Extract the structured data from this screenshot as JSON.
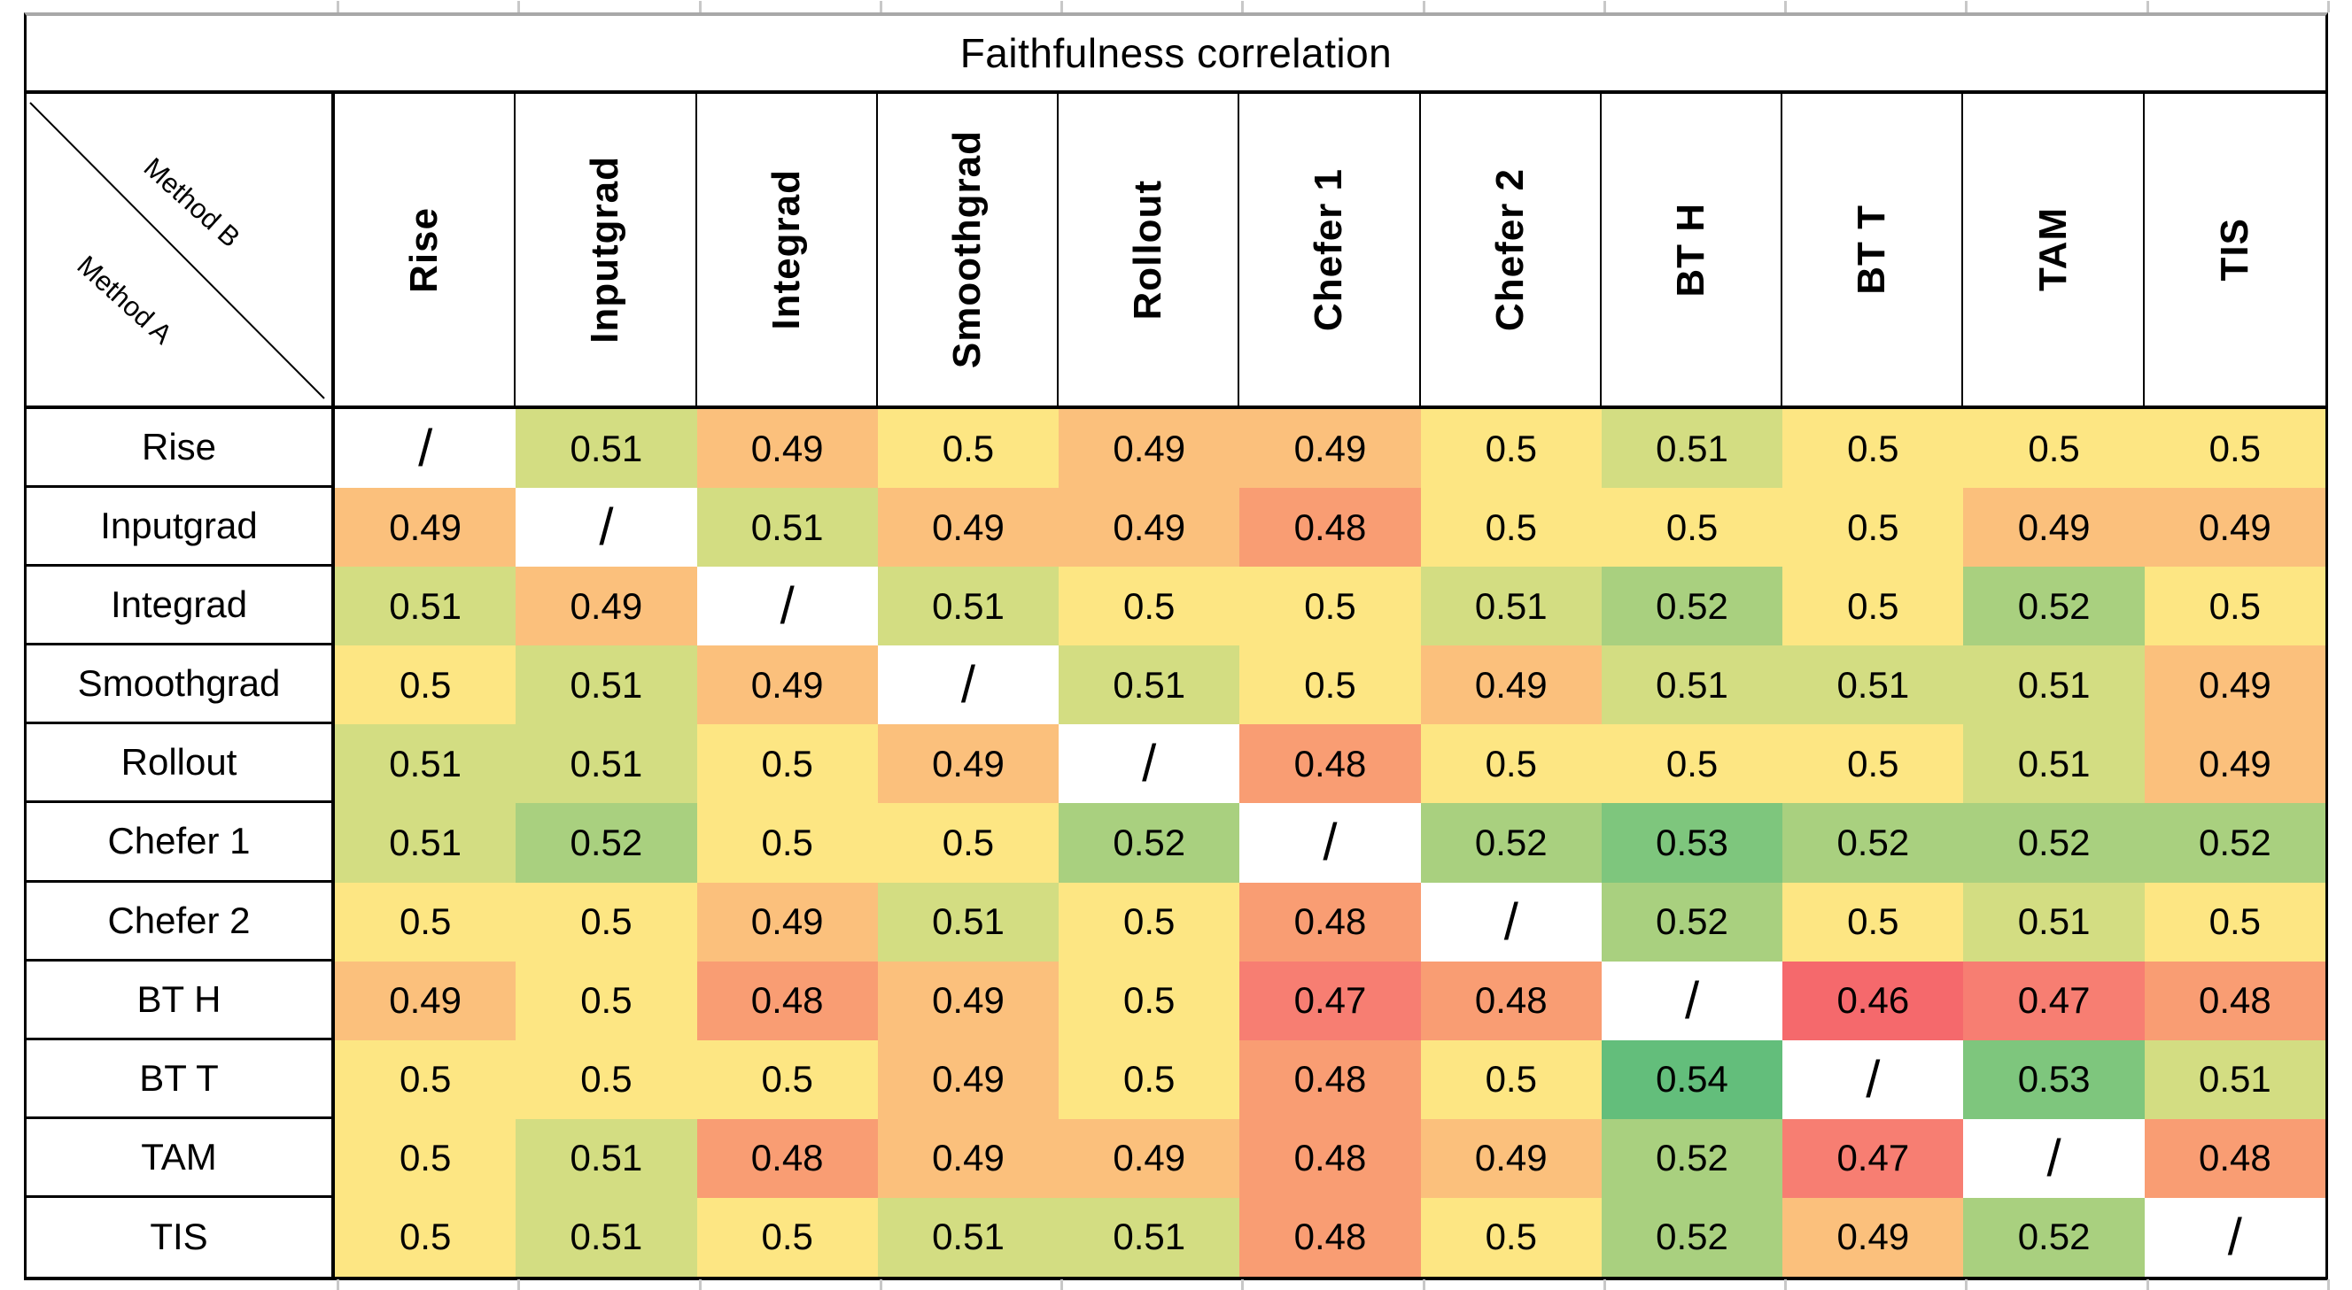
{
  "title": "Faithfulness correlation",
  "corner": {
    "top_label": "Method B",
    "bottom_label": "Method A"
  },
  "diagonal_symbol": "/",
  "chart_data": {
    "type": "heatmap",
    "title": "Faithfulness correlation",
    "rows_axis": "Method A",
    "cols_axis": "Method B",
    "categories": [
      "Rise",
      "Inputgrad",
      "Integrad",
      "Smoothgrad",
      "Rollout",
      "Chefer 1",
      "Chefer 2",
      "BT H",
      "BT T",
      "TAM",
      "TIS"
    ],
    "matrix": [
      [
        null,
        0.51,
        0.49,
        0.5,
        0.49,
        0.49,
        0.5,
        0.51,
        0.5,
        0.5,
        0.5
      ],
      [
        0.49,
        null,
        0.51,
        0.49,
        0.49,
        0.48,
        0.5,
        0.5,
        0.5,
        0.49,
        0.49
      ],
      [
        0.51,
        0.49,
        null,
        0.51,
        0.5,
        0.5,
        0.51,
        0.52,
        0.5,
        0.52,
        0.5
      ],
      [
        0.5,
        0.51,
        0.49,
        null,
        0.51,
        0.5,
        0.49,
        0.51,
        0.51,
        0.51,
        0.49
      ],
      [
        0.51,
        0.51,
        0.5,
        0.49,
        null,
        0.48,
        0.5,
        0.5,
        0.5,
        0.51,
        0.49
      ],
      [
        0.51,
        0.52,
        0.5,
        0.5,
        0.52,
        null,
        0.52,
        0.53,
        0.52,
        0.52,
        0.52
      ],
      [
        0.5,
        0.5,
        0.49,
        0.51,
        0.5,
        0.48,
        null,
        0.52,
        0.5,
        0.51,
        0.5
      ],
      [
        0.49,
        0.5,
        0.48,
        0.49,
        0.5,
        0.47,
        0.48,
        null,
        0.46,
        0.47,
        0.48
      ],
      [
        0.5,
        0.5,
        0.5,
        0.49,
        0.5,
        0.48,
        0.5,
        0.54,
        null,
        0.53,
        0.51
      ],
      [
        0.5,
        0.51,
        0.48,
        0.49,
        0.49,
        0.48,
        0.49,
        0.52,
        0.47,
        null,
        0.48
      ],
      [
        0.5,
        0.51,
        0.5,
        0.51,
        0.51,
        0.48,
        0.5,
        0.52,
        0.49,
        0.52,
        null
      ]
    ],
    "value_range": [
      0.46,
      0.54
    ],
    "legend": "none",
    "grid": "off",
    "color_scale": {
      "0.46": "#F5696C",
      "0.47": "#F77E72",
      "0.48": "#F99D73",
      "0.49": "#FBC07C",
      "0.5": "#FDE683",
      "0.51": "#D3DD82",
      "0.52": "#A9D07F",
      "0.53": "#7EC67D",
      "0.54": "#63BE7B",
      "diagonal_bg": "#FFFFFF",
      "border_black": "#000000",
      "gridline_gray": "#A8A8A8"
    }
  }
}
